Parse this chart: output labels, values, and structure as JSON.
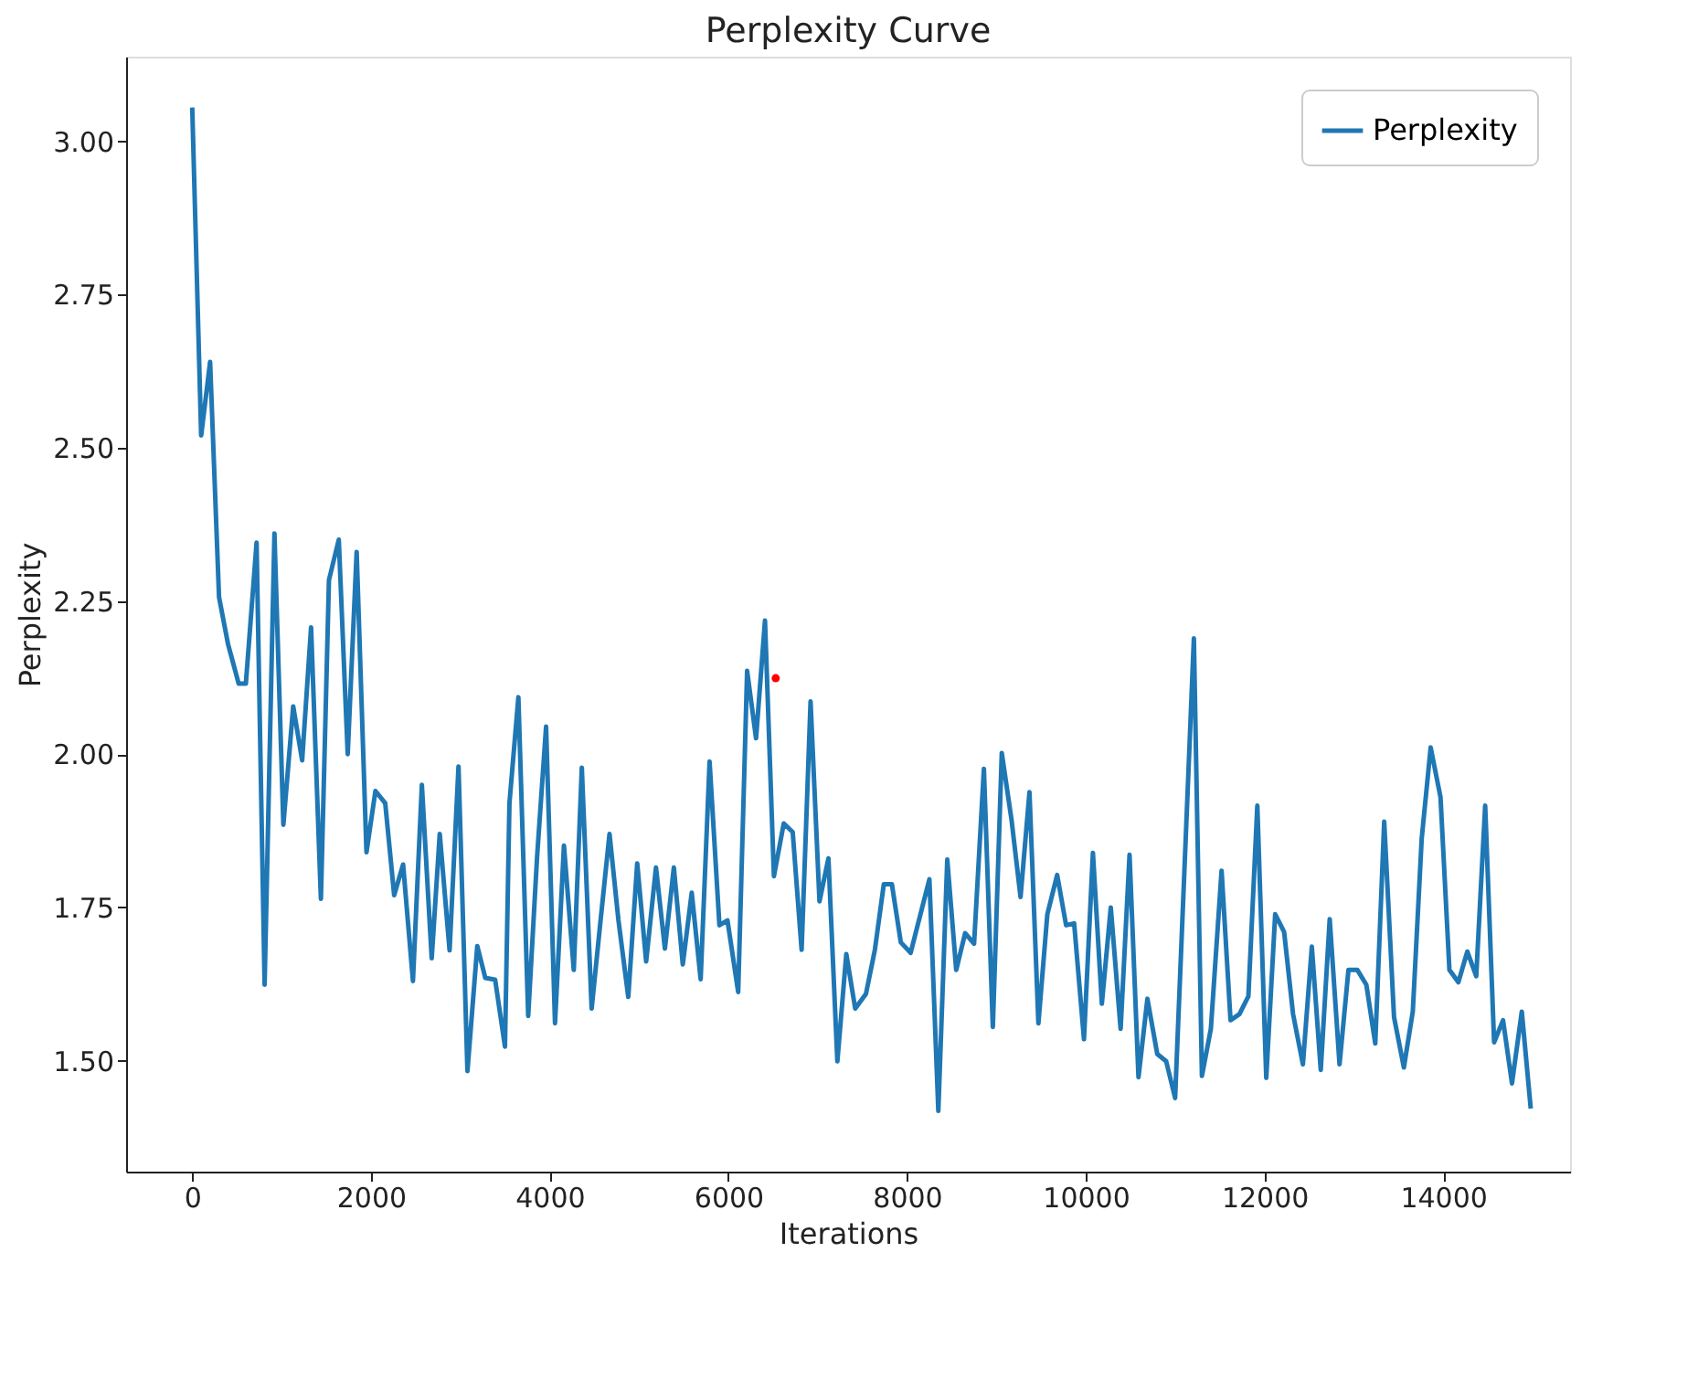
{
  "chart_data": {
    "type": "line",
    "title": "Perplexity Curve",
    "xlabel": "Iterations",
    "ylabel": "Perplexity",
    "xlim": [
      -740,
      15420
    ],
    "xticks": [
      0,
      2000,
      4000,
      6000,
      8000,
      10000,
      12000,
      14000
    ],
    "ylim": [
      1.319,
      3.138
    ],
    "yticks": [
      {
        "value": 1.5,
        "label": "1.50"
      },
      {
        "value": 1.75,
        "label": "1.75"
      },
      {
        "value": 2.0,
        "label": "2.00"
      },
      {
        "value": 2.25,
        "label": "2.25"
      },
      {
        "value": 2.5,
        "label": "2.50"
      },
      {
        "value": 2.75,
        "label": "2.75"
      },
      {
        "value": 3.0,
        "label": "3.00"
      }
    ],
    "grid": false,
    "legend": "top right",
    "series": [
      {
        "name": "Perplexity",
        "color": "#1f77b4",
        "x": [
          0,
          100,
          200,
          300,
          400,
          520,
          600,
          720,
          810,
          920,
          1020,
          1130,
          1230,
          1330,
          1440,
          1530,
          1640,
          1740,
          1840,
          1950,
          2050,
          2160,
          2260,
          2360,
          2470,
          2570,
          2680,
          2770,
          2880,
          2980,
          3080,
          3190,
          3280,
          3390,
          3500,
          3550,
          3650,
          3760,
          3860,
          3960,
          4060,
          4160,
          4270,
          4360,
          4470,
          4570,
          4670,
          4770,
          4880,
          4980,
          5080,
          5190,
          5290,
          5390,
          5490,
          5590,
          5690,
          5790,
          5900,
          5990,
          6110,
          6210,
          6310,
          6410,
          6510,
          6620,
          6720,
          6820,
          6920,
          7020,
          7120,
          7220,
          7320,
          7420,
          7540,
          7640,
          7740,
          7830,
          7930,
          8040,
          8150,
          8250,
          8350,
          8450,
          8550,
          8650,
          8750,
          8860,
          8960,
          9060,
          9170,
          9270,
          9370,
          9470,
          9570,
          9680,
          9780,
          9870,
          9980,
          10080,
          10180,
          10280,
          10390,
          10490,
          10590,
          10690,
          10800,
          10900,
          11000,
          11210,
          11300,
          11400,
          11520,
          11620,
          11720,
          11820,
          11920,
          12020,
          12120,
          12220,
          12320,
          12430,
          12530,
          12630,
          12730,
          12840,
          12940,
          13040,
          13140,
          13240,
          13340,
          13450,
          13560,
          13660,
          13760,
          13860,
          13970,
          14070,
          14170,
          14270,
          14370,
          14470,
          14570,
          14670,
          14770,
          14880,
          14980
        ],
        "values": [
          3.055,
          2.52,
          2.64,
          2.256,
          2.18,
          2.115,
          2.115,
          2.345,
          1.624,
          2.36,
          1.885,
          2.078,
          1.99,
          2.207,
          1.764,
          2.284,
          2.35,
          2.0,
          2.33,
          1.84,
          1.94,
          1.92,
          1.77,
          1.82,
          1.63,
          1.95,
          1.667,
          1.87,
          1.68,
          1.98,
          1.483,
          1.687,
          1.635,
          1.632,
          1.523,
          1.92,
          2.093,
          1.573,
          1.834,
          2.045,
          1.561,
          1.851,
          1.648,
          1.978,
          1.585,
          1.729,
          1.87,
          1.729,
          1.604,
          1.822,
          1.662,
          1.815,
          1.683,
          1.815,
          1.657,
          1.774,
          1.633,
          1.988,
          1.721,
          1.729,
          1.612,
          2.136,
          2.026,
          2.218,
          1.801,
          1.887,
          1.873,
          1.681,
          2.086,
          1.76,
          1.83,
          1.499,
          1.674,
          1.585,
          1.609,
          1.681,
          1.788,
          1.788,
          1.693,
          1.676,
          1.739,
          1.796,
          1.418,
          1.828,
          1.648,
          1.708,
          1.691,
          1.976,
          1.555,
          2.002,
          1.892,
          1.767,
          1.938,
          1.561,
          1.739,
          1.803,
          1.721,
          1.724,
          1.535,
          1.839,
          1.593,
          1.75,
          1.552,
          1.836,
          1.473,
          1.601,
          1.511,
          1.499,
          1.439,
          2.189,
          1.475,
          1.552,
          1.81,
          1.566,
          1.576,
          1.605,
          1.916,
          1.472,
          1.739,
          1.71,
          1.576,
          1.494,
          1.686,
          1.485,
          1.731,
          1.494,
          1.648,
          1.648,
          1.624,
          1.528,
          1.89,
          1.571,
          1.489,
          1.58,
          1.863,
          2.011,
          1.93,
          1.648,
          1.628,
          1.678,
          1.638,
          1.916,
          1.53,
          1.566,
          1.463,
          1.58,
          1.422
        ]
      },
      {
        "type": "scatter",
        "color": "#ff0000",
        "x": [
          6530
        ],
        "values": [
          2.124
        ]
      }
    ]
  }
}
